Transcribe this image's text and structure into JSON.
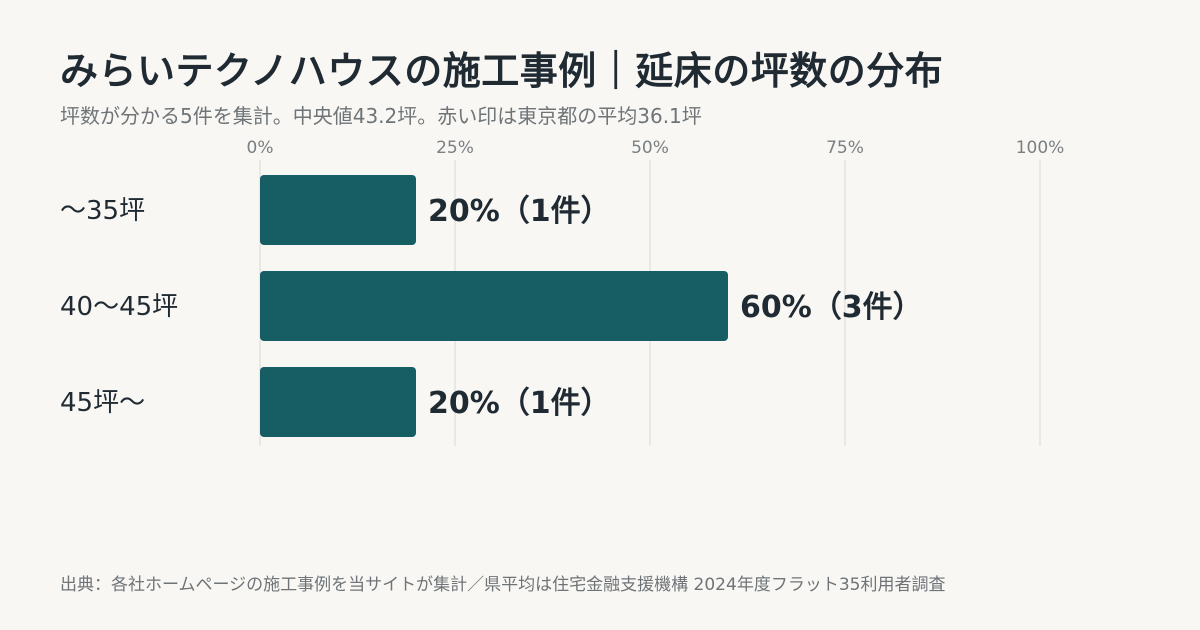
{
  "title": "みらいテクノハウスの施工事例｜延床の坪数の分布",
  "subtitle": "坪数が分かる5件を集計。中央値43.2坪。赤い印は東京都の平均36.1坪",
  "source": "出典：各社ホームページの施工事例を当サイトが集計／県平均は住宅金融支援機構 2024年度フラット35利用者調査",
  "colors": {
    "bar": "#165e63",
    "grid": "#dcdad5",
    "tick_text": "#7a7f83",
    "label_text": "#1f2a33"
  },
  "chart_data": {
    "type": "bar",
    "orientation": "horizontal",
    "categories": [
      "〜35坪",
      "40〜45坪",
      "45坪〜"
    ],
    "values": [
      20,
      60,
      20
    ],
    "data_labels": [
      "20%（1件）",
      "60%（3件）",
      "20%（1件）"
    ],
    "xlim": [
      0,
      100
    ],
    "xticks": [
      0,
      25,
      50,
      75,
      100
    ],
    "xtick_labels": [
      "0%",
      "25%",
      "50%",
      "75%",
      "100%"
    ],
    "grid": "vertical",
    "xlabel": "",
    "ylabel": ""
  }
}
